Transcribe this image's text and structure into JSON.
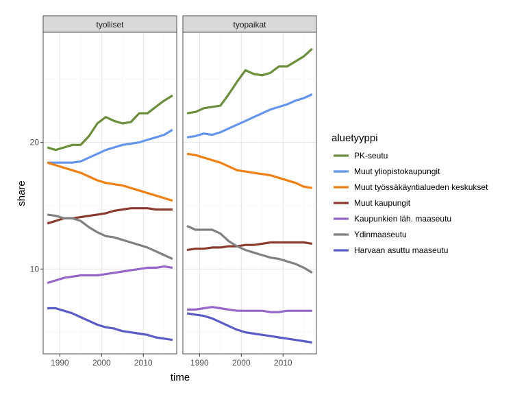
{
  "chart_data": {
    "type": "line",
    "xlabel": "time",
    "ylabel": "share",
    "xlim": [
      1986,
      2018
    ],
    "ylim": [
      3.3,
      28.7
    ],
    "x_ticks": [
      1990,
      2000,
      2010
    ],
    "y_ticks": [
      10,
      20
    ],
    "grid": true,
    "legend": {
      "title": "aluetyyppi",
      "position": "right"
    },
    "x": [
      1987,
      1989,
      1991,
      1993,
      1995,
      1997,
      1999,
      2001,
      2003,
      2005,
      2007,
      2009,
      2011,
      2013,
      2015,
      2017
    ],
    "panels": [
      {
        "label": "tyolliset",
        "series": [
          {
            "name": "PK-seutu",
            "color": "#6b8e3a",
            "values": [
              19.6,
              19.4,
              19.6,
              19.8,
              19.8,
              20.5,
              21.5,
              22.0,
              21.7,
              21.5,
              21.6,
              22.3,
              22.3,
              22.8,
              23.3,
              23.7
            ]
          },
          {
            "name": "Muut yliopistokaupungit",
            "color": "#6495ed",
            "values": [
              18.4,
              18.4,
              18.4,
              18.4,
              18.5,
              18.8,
              19.1,
              19.4,
              19.6,
              19.8,
              19.9,
              20.0,
              20.2,
              20.4,
              20.6,
              21.0
            ]
          },
          {
            "name": "Muut työssäkäyntialueden keskukset",
            "color": "#f07f12",
            "values": [
              18.4,
              18.2,
              18.0,
              17.8,
              17.6,
              17.3,
              17.0,
              16.8,
              16.7,
              16.6,
              16.4,
              16.2,
              16.0,
              15.8,
              15.6,
              15.4
            ]
          },
          {
            "name": "Muut kaupungit",
            "color": "#8b3a2e",
            "values": [
              13.6,
              13.8,
              14.0,
              14.0,
              14.1,
              14.2,
              14.3,
              14.4,
              14.6,
              14.7,
              14.8,
              14.8,
              14.8,
              14.7,
              14.7,
              14.7
            ]
          },
          {
            "name": "Kaupunkien läh. maaseutu",
            "color": "#9467c8",
            "values": [
              8.9,
              9.1,
              9.3,
              9.4,
              9.5,
              9.5,
              9.5,
              9.6,
              9.7,
              9.8,
              9.9,
              10.0,
              10.1,
              10.1,
              10.2,
              10.1
            ]
          },
          {
            "name": "Ydinmaaseutu",
            "color": "#808080",
            "values": [
              14.3,
              14.2,
              14.0,
              14.0,
              13.8,
              13.3,
              12.9,
              12.6,
              12.5,
              12.3,
              12.1,
              11.9,
              11.7,
              11.4,
              11.1,
              10.8
            ]
          },
          {
            "name": "Harvaan asuttu maaseutu",
            "color": "#5b5bc8",
            "values": [
              6.9,
              6.9,
              6.7,
              6.5,
              6.2,
              5.9,
              5.6,
              5.4,
              5.3,
              5.1,
              5.0,
              4.9,
              4.8,
              4.6,
              4.5,
              4.4
            ]
          }
        ]
      },
      {
        "label": "tyopaikat",
        "series": [
          {
            "name": "PK-seutu",
            "color": "#6b8e3a",
            "values": [
              22.3,
              22.4,
              22.7,
              22.8,
              22.9,
              23.8,
              24.8,
              25.7,
              25.4,
              25.3,
              25.5,
              26.0,
              26.0,
              26.4,
              26.8,
              27.4
            ]
          },
          {
            "name": "Muut yliopistokaupungit",
            "color": "#6495ed",
            "values": [
              20.4,
              20.5,
              20.7,
              20.6,
              20.8,
              21.1,
              21.4,
              21.7,
              22.0,
              22.3,
              22.6,
              22.8,
              23.0,
              23.3,
              23.5,
              23.8
            ]
          },
          {
            "name": "Muut työssäkäyntialueden keskukset",
            "color": "#f07f12",
            "values": [
              19.1,
              19.0,
              18.8,
              18.6,
              18.4,
              18.1,
              17.8,
              17.7,
              17.6,
              17.5,
              17.4,
              17.2,
              17.0,
              16.8,
              16.5,
              16.4
            ]
          },
          {
            "name": "Muut kaupungit",
            "color": "#8b3a2e",
            "values": [
              11.5,
              11.6,
              11.6,
              11.7,
              11.7,
              11.8,
              11.8,
              11.9,
              11.9,
              12.0,
              12.1,
              12.1,
              12.1,
              12.1,
              12.1,
              12.0
            ]
          },
          {
            "name": "Kaupunkien läh. maaseutu",
            "color": "#9467c8",
            "values": [
              6.8,
              6.8,
              6.9,
              7.0,
              6.9,
              6.8,
              6.7,
              6.7,
              6.7,
              6.7,
              6.6,
              6.6,
              6.7,
              6.7,
              6.7,
              6.7
            ]
          },
          {
            "name": "Ydinmaaseutu",
            "color": "#808080",
            "values": [
              13.4,
              13.1,
              13.1,
              13.1,
              12.8,
              12.2,
              11.8,
              11.5,
              11.3,
              11.1,
              10.9,
              10.8,
              10.6,
              10.4,
              10.1,
              9.7
            ]
          },
          {
            "name": "Harvaan asuttu maaseutu",
            "color": "#5b5bc8",
            "values": [
              6.5,
              6.4,
              6.3,
              6.1,
              5.8,
              5.5,
              5.2,
              5.0,
              4.9,
              4.8,
              4.7,
              4.6,
              4.5,
              4.4,
              4.3,
              4.2
            ]
          }
        ]
      }
    ]
  }
}
